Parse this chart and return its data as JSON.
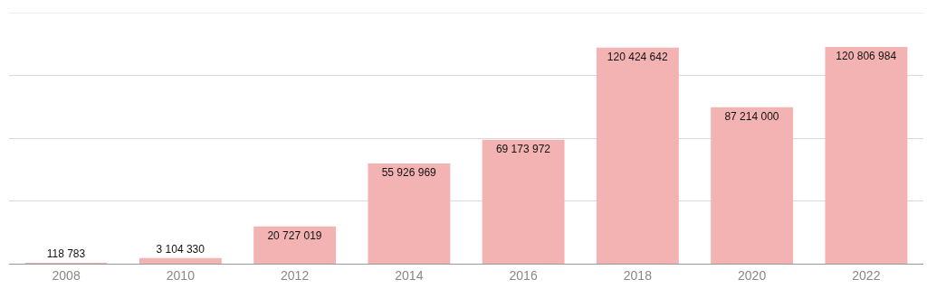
{
  "chart_data": {
    "type": "bar",
    "categories": [
      "2008",
      "2010",
      "2012",
      "2014",
      "2016",
      "2018",
      "2020",
      "2022"
    ],
    "values": [
      118783,
      3104330,
      20727019,
      55926969,
      69173972,
      120424642,
      87214000,
      120806984
    ],
    "value_labels": [
      "118 783",
      "3 104 330",
      "20 727 019",
      "55 926 969",
      "69 173 972",
      "120 424 642",
      "87 214 000",
      "120 806 984"
    ],
    "color": "#f4b3b3",
    "ylim": [
      0,
      140000000
    ],
    "yticks": [
      {
        "value": 0,
        "label": null
      },
      {
        "value": 35000000,
        "label": null
      },
      {
        "value": 70000000,
        "label": null
      },
      {
        "value": 105000000,
        "label": null
      },
      {
        "value": 140000000,
        "label": null
      }
    ],
    "grid": "y",
    "tick_labels": "x",
    "legend": false
  }
}
